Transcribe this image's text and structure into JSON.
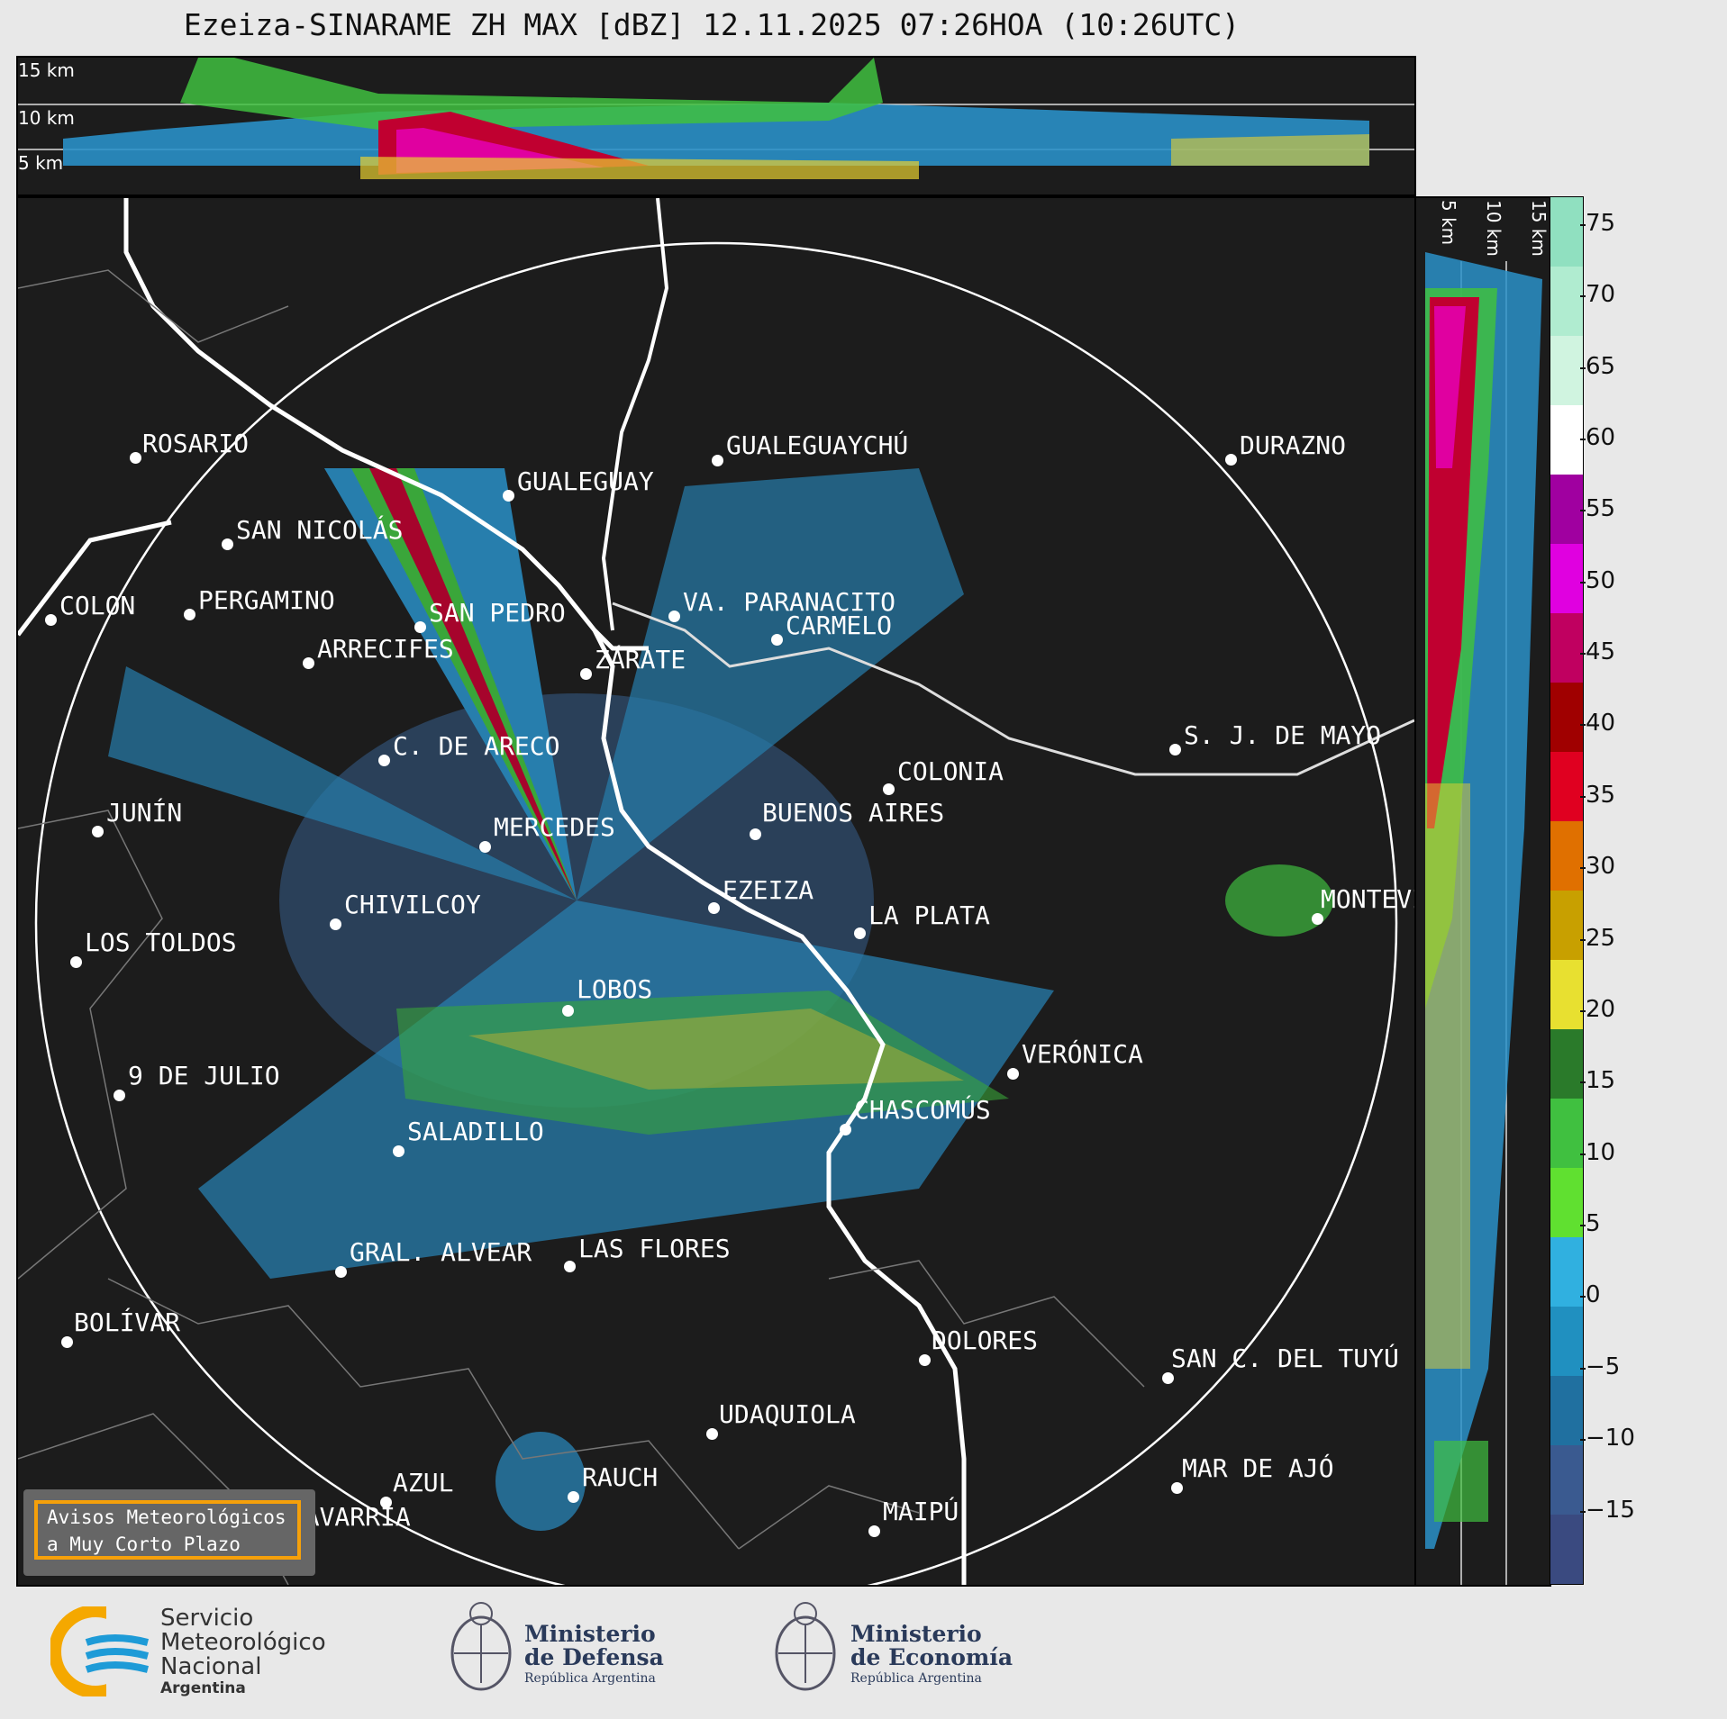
{
  "title": "Ezeiza-SINARAME ZH MAX [dBZ] 12.11.2025 07:26HOA (10:26UTC)",
  "top_panel": {
    "height_labels": [
      "15 km",
      "10 km",
      "5 km"
    ]
  },
  "side_panel": {
    "height_labels": [
      "5 km",
      "10 km",
      "15 km"
    ]
  },
  "cities": [
    {
      "name": "ROSARIO"
    },
    {
      "name": "GUALEGUAYCHÚ"
    },
    {
      "name": "GUALEGUAY"
    },
    {
      "name": "SAN NICOLÁS"
    },
    {
      "name": "DURAZNO"
    },
    {
      "name": "SAN PEDRO"
    },
    {
      "name": "VA. PARANACITO"
    },
    {
      "name": "COLON"
    },
    {
      "name": "PERGAMINO"
    },
    {
      "name": "CARMELO"
    },
    {
      "name": "ARRECIFES"
    },
    {
      "name": "ZÁRATE"
    },
    {
      "name": "S. J. DE MAYO"
    },
    {
      "name": "C. DE ARECO"
    },
    {
      "name": "COLONIA"
    },
    {
      "name": "JUNÍN"
    },
    {
      "name": "BUENOS AIRES"
    },
    {
      "name": "MERCEDES"
    },
    {
      "name": "EZEIZA"
    },
    {
      "name": "MONTEVIDEO"
    },
    {
      "name": "CHIVILCOY"
    },
    {
      "name": "LA PLATA"
    },
    {
      "name": "LOS TOLDOS"
    },
    {
      "name": "LOBOS"
    },
    {
      "name": "VERÓNICA"
    },
    {
      "name": "9 DE JULIO"
    },
    {
      "name": "CHASCOMÚS"
    },
    {
      "name": "SALADILLO"
    },
    {
      "name": "GRAL. ALVEAR"
    },
    {
      "name": "LAS FLORES"
    },
    {
      "name": "BOLÍVAR"
    },
    {
      "name": "DOLORES"
    },
    {
      "name": "SAN C. DEL TUYÚ"
    },
    {
      "name": "UDAQUIOLA"
    },
    {
      "name": "MAR DE AJÓ"
    },
    {
      "name": "AZUL"
    },
    {
      "name": "RAUCH"
    },
    {
      "name": "OLAVARRÍA"
    },
    {
      "name": "MAIPÚ"
    }
  ],
  "colorbar": {
    "unit": "dBZ",
    "ticks": [
      "75",
      "70",
      "65",
      "60",
      "55",
      "50",
      "45",
      "40",
      "35",
      "30",
      "25",
      "20",
      "15",
      "10",
      "5",
      "0",
      "−5",
      "−10",
      "−15"
    ],
    "colors": [
      "#90e0c0",
      "#b0ecd0",
      "#d0f4e0",
      "#ffffff",
      "#a000a0",
      "#e000e0",
      "#c00060",
      "#a00000",
      "#e00020",
      "#e07000",
      "#c8a000",
      "#e8e030",
      "#2a7a2a",
      "#40c040",
      "#60e030",
      "#30b0e0",
      "#2090c0",
      "#2070a0",
      "#3a5a90",
      "#3a4a80"
    ]
  },
  "avisos": {
    "line1": "Avisos Meteorológicos",
    "line2": "a Muy Corto Plazo"
  },
  "logos": {
    "smn": {
      "line1": "Servicio",
      "line2": "Meteorológico",
      "line3": "Nacional",
      "line4": "Argentina"
    },
    "defensa": {
      "line1": "Ministerio",
      "line2": "de Defensa",
      "line3": "República Argentina"
    },
    "economia": {
      "line1": "Ministerio",
      "line2": "de Economía",
      "line3": "República Argentina"
    }
  }
}
